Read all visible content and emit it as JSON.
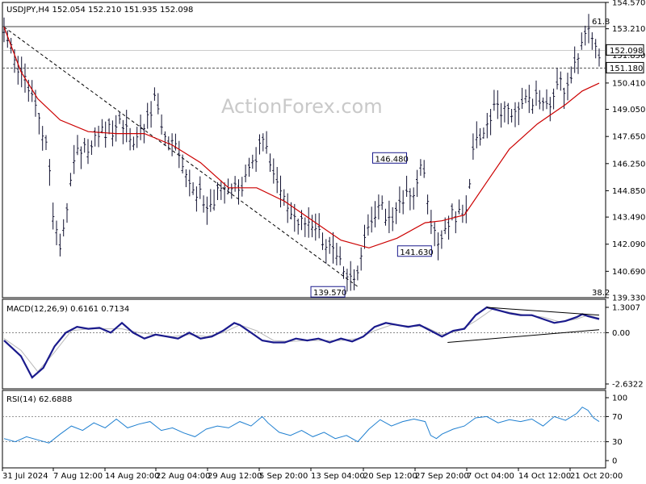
{
  "chart_data": [
    {
      "type": "candlestick",
      "symbol_title": "USDJPY,H4  152.054 152.210 151.935 152.098",
      "watermark": "ActionForex.com",
      "ylim": [
        139.33,
        154.57
      ],
      "y_ticks": [
        "154.570",
        "153.210",
        "151.850",
        "150.410",
        "149.050",
        "147.650",
        "146.250",
        "144.850",
        "143.490",
        "142.090",
        "140.690",
        "139.330"
      ],
      "x_ticks": [
        "31 Jul 2024",
        "7 Aug 12:00",
        "14 Aug 20:00",
        "22 Aug 04:00",
        "29 Aug 12:00",
        "5 Sep 20:00",
        "13 Sep 04:00",
        "20 Sep 12:00",
        "27 Sep 20:00",
        "7 Oct 04:00",
        "14 Oct 12:00",
        "21 Oct 20:00"
      ],
      "current_price_label": "152.098",
      "current_price": 152.098,
      "level_label": "151.180",
      "level": 151.18,
      "fib_top_label": "61.8",
      "fib_top_value": 153.32,
      "fib_bottom_label": "38.2",
      "annotations": [
        {
          "label": "146.480",
          "value": 146.48
        },
        {
          "label": "141.630",
          "value": 141.63
        },
        {
          "label": "139.570",
          "value": 139.57
        }
      ],
      "price_path": [
        [
          0,
          153.3
        ],
        [
          2,
          151.2
        ],
        [
          4,
          150.5
        ],
        [
          6,
          149.0
        ],
        [
          8,
          146.3
        ],
        [
          9,
          143.0
        ],
        [
          10,
          142.0
        ],
        [
          11,
          143.8
        ],
        [
          13,
          146.8
        ],
        [
          15,
          147.0
        ],
        [
          17,
          147.8
        ],
        [
          19,
          148.0
        ],
        [
          21,
          148.2
        ],
        [
          23,
          147.3
        ],
        [
          25,
          148.4
        ],
        [
          27,
          149.5
        ],
        [
          28,
          148.0
        ],
        [
          30,
          147.2
        ],
        [
          32,
          146.3
        ],
        [
          34,
          145.0
        ],
        [
          36,
          144.0
        ],
        [
          38,
          144.6
        ],
        [
          40,
          145.0
        ],
        [
          42,
          144.7
        ],
        [
          44,
          145.9
        ],
        [
          46,
          147.3
        ],
        [
          47,
          146.6
        ],
        [
          49,
          145.0
        ],
        [
          51,
          143.6
        ],
        [
          53,
          143.3
        ],
        [
          55,
          142.6
        ],
        [
          57,
          142.4
        ],
        [
          59,
          141.5
        ],
        [
          61,
          140.6
        ],
        [
          62,
          140.0
        ],
        [
          63,
          140.9
        ],
        [
          65,
          142.8
        ],
        [
          67,
          144.0
        ],
        [
          69,
          143.4
        ],
        [
          71,
          144.3
        ],
        [
          73,
          144.9
        ],
        [
          74,
          145.9
        ],
        [
          75,
          145.5
        ],
        [
          76,
          143.4
        ],
        [
          77,
          142.3
        ],
        [
          78,
          142.6
        ],
        [
          80,
          143.6
        ],
        [
          82,
          143.5
        ],
        [
          84,
          147.5
        ],
        [
          86,
          148.0
        ],
        [
          87,
          149.3
        ],
        [
          89,
          148.8
        ],
        [
          91,
          149.2
        ],
        [
          93,
          149.5
        ],
        [
          95,
          149.7
        ],
        [
          97,
          149.1
        ],
        [
          99,
          150.3
        ],
        [
          100,
          150.2
        ],
        [
          102,
          151.8
        ],
        [
          103,
          152.8
        ],
        [
          104,
          153.1
        ],
        [
          105,
          152.6
        ],
        [
          106,
          152.0
        ]
      ],
      "ma_path": [
        [
          0,
          153.3
        ],
        [
          3,
          151.0
        ],
        [
          6,
          149.6
        ],
        [
          10,
          148.5
        ],
        [
          15,
          147.9
        ],
        [
          20,
          147.8
        ],
        [
          25,
          147.8
        ],
        [
          30,
          147.2
        ],
        [
          35,
          146.3
        ],
        [
          40,
          145.0
        ],
        [
          45,
          145.0
        ],
        [
          50,
          144.3
        ],
        [
          55,
          143.3
        ],
        [
          60,
          142.3
        ],
        [
          65,
          141.9
        ],
        [
          70,
          142.4
        ],
        [
          75,
          143.2
        ],
        [
          78,
          143.3
        ],
        [
          82,
          143.6
        ],
        [
          86,
          145.3
        ],
        [
          90,
          147.0
        ],
        [
          95,
          148.3
        ],
        [
          100,
          149.3
        ],
        [
          103,
          150.0
        ],
        [
          106,
          150.4
        ]
      ],
      "trendline": {
        "from": [
          0,
          153.3
        ],
        "to": [
          63,
          139.9
        ]
      }
    },
    {
      "type": "line",
      "title": "MACD(12,26,9) 0.6161 0.7134",
      "ylim": [
        -2.6322,
        1.3007
      ],
      "y_ticks": [
        "1.3007",
        "0.00",
        "-2.6322"
      ],
      "macd_path": [
        [
          0,
          -0.4
        ],
        [
          3,
          -1.2
        ],
        [
          5,
          -2.3
        ],
        [
          7,
          -1.8
        ],
        [
          9,
          -0.7
        ],
        [
          11,
          0.0
        ],
        [
          13,
          0.3
        ],
        [
          15,
          0.2
        ],
        [
          17,
          0.25
        ],
        [
          19,
          0.0
        ],
        [
          21,
          0.5
        ],
        [
          23,
          0.0
        ],
        [
          25,
          -0.3
        ],
        [
          27,
          -0.1
        ],
        [
          29,
          -0.2
        ],
        [
          31,
          -0.3
        ],
        [
          33,
          0.0
        ],
        [
          35,
          -0.3
        ],
        [
          37,
          -0.2
        ],
        [
          39,
          0.1
        ],
        [
          41,
          0.5
        ],
        [
          42,
          0.4
        ],
        [
          44,
          0.0
        ],
        [
          46,
          -0.4
        ],
        [
          48,
          -0.5
        ],
        [
          50,
          -0.5
        ],
        [
          52,
          -0.3
        ],
        [
          54,
          -0.4
        ],
        [
          56,
          -0.3
        ],
        [
          58,
          -0.5
        ],
        [
          60,
          -0.3
        ],
        [
          62,
          -0.45
        ],
        [
          64,
          -0.2
        ],
        [
          66,
          0.3
        ],
        [
          68,
          0.5
        ],
        [
          70,
          0.4
        ],
        [
          72,
          0.3
        ],
        [
          74,
          0.4
        ],
        [
          76,
          0.1
        ],
        [
          78,
          -0.2
        ],
        [
          80,
          0.1
        ],
        [
          82,
          0.2
        ],
        [
          84,
          0.9
        ],
        [
          86,
          1.3
        ],
        [
          88,
          1.15
        ],
        [
          90,
          1.0
        ],
        [
          92,
          0.9
        ],
        [
          94,
          0.9
        ],
        [
          96,
          0.7
        ],
        [
          98,
          0.5
        ],
        [
          100,
          0.6
        ],
        [
          102,
          0.8
        ],
        [
          103,
          0.95
        ],
        [
          104,
          0.85
        ],
        [
          106,
          0.7
        ]
      ],
      "signal_path": [
        [
          0,
          -0.3
        ],
        [
          3,
          -0.9
        ],
        [
          6,
          -2.0
        ],
        [
          9,
          -1.0
        ],
        [
          12,
          0.1
        ],
        [
          15,
          0.2
        ],
        [
          18,
          0.2
        ],
        [
          21,
          0.2
        ],
        [
          24,
          0.0
        ],
        [
          27,
          -0.1
        ],
        [
          30,
          -0.2
        ],
        [
          33,
          -0.1
        ],
        [
          36,
          -0.2
        ],
        [
          39,
          0.0
        ],
        [
          42,
          0.4
        ],
        [
          45,
          0.1
        ],
        [
          48,
          -0.4
        ],
        [
          51,
          -0.45
        ],
        [
          54,
          -0.4
        ],
        [
          57,
          -0.4
        ],
        [
          60,
          -0.4
        ],
        [
          63,
          -0.3
        ],
        [
          66,
          0.1
        ],
        [
          69,
          0.4
        ],
        [
          72,
          0.35
        ],
        [
          75,
          0.3
        ],
        [
          78,
          -0.1
        ],
        [
          81,
          0.1
        ],
        [
          84,
          0.6
        ],
        [
          87,
          1.2
        ],
        [
          90,
          1.05
        ],
        [
          93,
          0.9
        ],
        [
          96,
          0.8
        ],
        [
          99,
          0.55
        ],
        [
          102,
          0.7
        ],
        [
          104,
          0.9
        ],
        [
          106,
          0.75
        ]
      ],
      "upper_trendline": {
        "from": [
          86,
          1.3
        ],
        "to": [
          106,
          0.9
        ]
      },
      "lower_trendline": {
        "from": [
          79,
          -0.5
        ],
        "to": [
          106,
          0.15
        ]
      }
    },
    {
      "type": "line",
      "title": "RSI(14) 62.6888",
      "ylim": [
        0,
        100
      ],
      "y_ticks": [
        "100",
        "70",
        "30",
        "0"
      ],
      "reference_levels": [
        70,
        30
      ],
      "rsi_path": [
        [
          0,
          35
        ],
        [
          2,
          30
        ],
        [
          4,
          38
        ],
        [
          6,
          33
        ],
        [
          8,
          28
        ],
        [
          10,
          42
        ],
        [
          12,
          55
        ],
        [
          14,
          48
        ],
        [
          16,
          60
        ],
        [
          18,
          52
        ],
        [
          20,
          66
        ],
        [
          22,
          52
        ],
        [
          24,
          58
        ],
        [
          26,
          62
        ],
        [
          28,
          48
        ],
        [
          30,
          52
        ],
        [
          32,
          44
        ],
        [
          34,
          38
        ],
        [
          36,
          50
        ],
        [
          38,
          55
        ],
        [
          40,
          52
        ],
        [
          42,
          62
        ],
        [
          44,
          55
        ],
        [
          46,
          70
        ],
        [
          47,
          60
        ],
        [
          49,
          45
        ],
        [
          51,
          40
        ],
        [
          53,
          48
        ],
        [
          55,
          38
        ],
        [
          57,
          45
        ],
        [
          59,
          35
        ],
        [
          61,
          40
        ],
        [
          63,
          30
        ],
        [
          65,
          50
        ],
        [
          67,
          65
        ],
        [
          69,
          55
        ],
        [
          71,
          62
        ],
        [
          73,
          66
        ],
        [
          75,
          62
        ],
        [
          76,
          40
        ],
        [
          77,
          35
        ],
        [
          78,
          42
        ],
        [
          80,
          50
        ],
        [
          82,
          55
        ],
        [
          84,
          68
        ],
        [
          86,
          70
        ],
        [
          88,
          60
        ],
        [
          90,
          65
        ],
        [
          92,
          62
        ],
        [
          94,
          66
        ],
        [
          96,
          55
        ],
        [
          98,
          70
        ],
        [
          100,
          64
        ],
        [
          102,
          75
        ],
        [
          103,
          85
        ],
        [
          104,
          80
        ],
        [
          105,
          68
        ],
        [
          106,
          62
        ]
      ],
      "series_color": "#1e7fd0"
    }
  ],
  "colors": {
    "candles": "#101030",
    "ma": "#cc0000",
    "macd": "#1a1a8c",
    "signal": "#b8b8b8",
    "label_border": "#1a1a8c",
    "grid_dash": "#555555"
  }
}
